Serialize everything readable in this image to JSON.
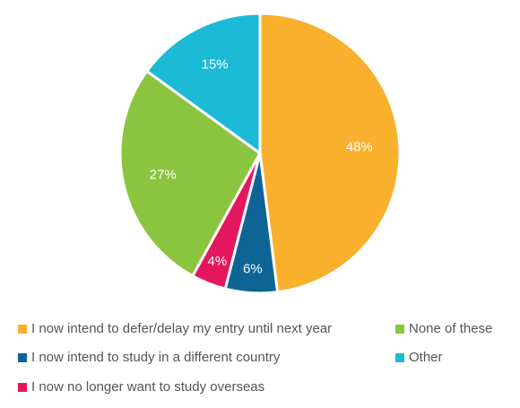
{
  "chart_data": {
    "type": "pie",
    "slices": [
      {
        "label": "I now intend to defer/delay my entry until next year",
        "value": 48,
        "display": "48%",
        "color": "#F9B02C"
      },
      {
        "label": "I now intend to study in a different country",
        "value": 6,
        "display": "6%",
        "color": "#0F6496"
      },
      {
        "label": "I now no longer want to study overseas",
        "value": 4,
        "display": "4%",
        "color": "#E4175E"
      },
      {
        "label": "None of these",
        "value": 27,
        "display": "27%",
        "color": "#8BC53F"
      },
      {
        "label": "Other",
        "value": 15,
        "display": "15%",
        "color": "#1CBAD6"
      }
    ],
    "start_angle_deg": 0,
    "direction": "clockwise",
    "legend_position": "bottom"
  }
}
